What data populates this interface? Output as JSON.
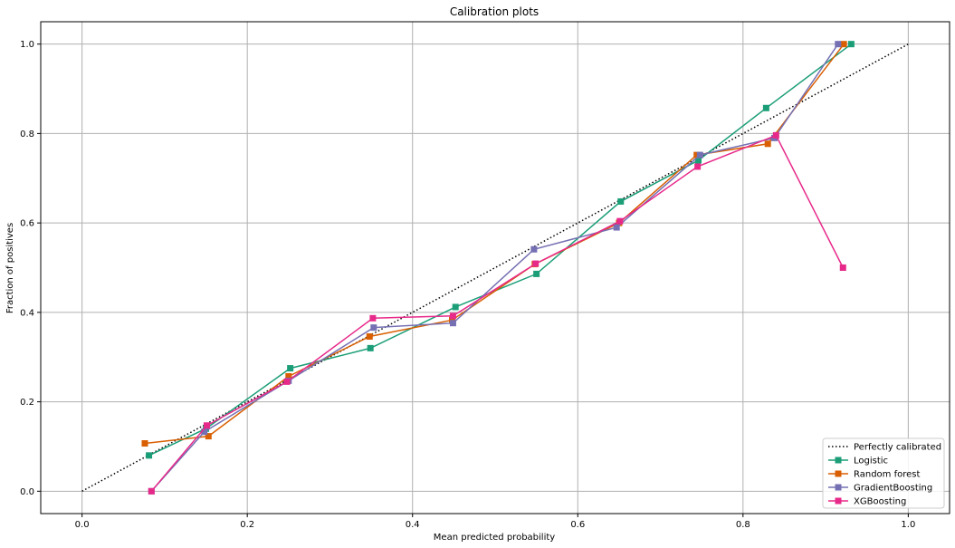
{
  "chart_data": {
    "type": "line",
    "title": "Calibration plots",
    "xlabel": "Mean predicted probability",
    "ylabel": "Fraction of positives",
    "xlim": [
      -0.05,
      1.05
    ],
    "ylim": [
      -0.05,
      1.05
    ],
    "xticks": [
      0.0,
      0.2,
      0.4,
      0.6,
      0.8,
      1.0
    ],
    "xtick_labels": [
      "0.0",
      "0.2",
      "0.4",
      "0.6",
      "0.8",
      "1.0"
    ],
    "yticks": [
      0.0,
      0.2,
      0.4,
      0.6,
      0.8,
      1.0
    ],
    "ytick_labels": [
      "0.0",
      "0.2",
      "0.4",
      "0.6",
      "0.8",
      "1.0"
    ],
    "grid": true,
    "legend_position": "bottom-right",
    "series": [
      {
        "name": "Perfectly calibrated",
        "color": "#000000",
        "style": "dotted",
        "marker": "none",
        "x": [
          0.0,
          1.0
        ],
        "y": [
          0.0,
          1.0
        ]
      },
      {
        "name": "Logistic",
        "color": "#1b9e77",
        "style": "solid",
        "marker": "square",
        "x": [
          0.081,
          0.15,
          0.252,
          0.349,
          0.452,
          0.55,
          0.652,
          0.746,
          0.828,
          0.931
        ],
        "y": [
          0.08,
          0.14,
          0.275,
          0.32,
          0.412,
          0.486,
          0.648,
          0.74,
          0.857,
          1.0
        ]
      },
      {
        "name": "Random forest",
        "color": "#d95f02",
        "style": "solid",
        "marker": "square",
        "x": [
          0.076,
          0.153,
          0.25,
          0.348,
          0.448,
          0.548,
          0.65,
          0.744,
          0.83,
          0.922
        ],
        "y": [
          0.107,
          0.123,
          0.257,
          0.346,
          0.383,
          0.508,
          0.6,
          0.752,
          0.777,
          1.0
        ]
      },
      {
        "name": "GradientBoosting",
        "color": "#7570b3",
        "style": "solid",
        "marker": "square",
        "x": [
          0.084,
          0.148,
          0.25,
          0.353,
          0.449,
          0.547,
          0.647,
          0.748,
          0.838,
          0.915
        ],
        "y": [
          0.0,
          0.133,
          0.247,
          0.366,
          0.376,
          0.541,
          0.59,
          0.752,
          0.79,
          1.0
        ]
      },
      {
        "name": "XGBoosting",
        "color": "#e7298a",
        "style": "solid",
        "marker": "square",
        "x": [
          0.084,
          0.151,
          0.248,
          0.352,
          0.449,
          0.549,
          0.651,
          0.745,
          0.84,
          0.921
        ],
        "y": [
          0.0,
          0.147,
          0.245,
          0.387,
          0.392,
          0.509,
          0.604,
          0.726,
          0.796,
          0.5
        ]
      }
    ]
  }
}
